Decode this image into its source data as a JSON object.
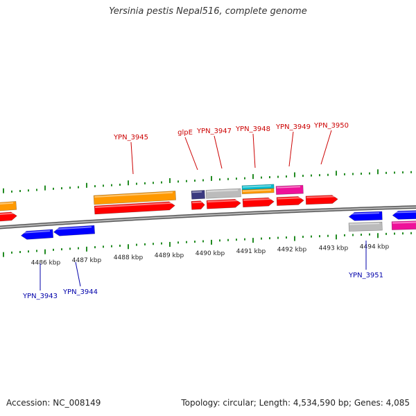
{
  "title": "Yersinia pestis Nepal516, complete genome",
  "footer": {
    "accession": "Accession: NC_008149",
    "summary": "Topology: circular; Length: 4,534,590 bp; Genes: 4,085"
  },
  "colors": {
    "forward_label": "#cc0000",
    "reverse_label": "#0000aa",
    "tick": "#228b22",
    "backbone": "#888888",
    "cds": "#ff0000",
    "cds_reverse": "#0000ff",
    "orange": "#ff9900",
    "grey": "#bbbbbb",
    "navy": "#3a3a80",
    "cyan": "#00bbcc",
    "magenta": "#ee1199"
  },
  "scale_labels": [
    "4486 kbp",
    "4487 kbp",
    "4488 kbp",
    "4489 kbp",
    "4490 kbp",
    "4491 kbp",
    "4492 kbp",
    "4493 kbp",
    "4494 kbp"
  ],
  "forward_gene_labels": [
    "YPN_3945",
    "glpE",
    "YPN_3947",
    "YPN_3948",
    "YPN_3949",
    "YPN_3950"
  ],
  "reverse_gene_labels": [
    "YPN_3943",
    "YPN_3944",
    "YPN_3951"
  ]
}
